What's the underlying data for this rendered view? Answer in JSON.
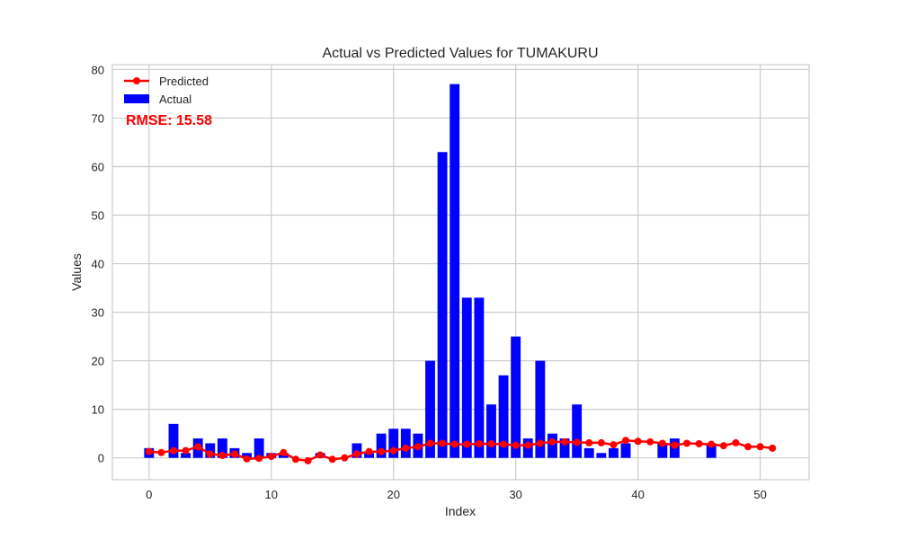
{
  "chart_data": {
    "type": "bar",
    "title": "Actual vs Predicted Values for TUMAKURU",
    "xlabel": "Index",
    "ylabel": "Values",
    "xlim": [
      -3,
      54
    ],
    "ylim": [
      -4.5,
      81
    ],
    "xticks": [
      0,
      10,
      20,
      30,
      40,
      50
    ],
    "yticks": [
      0,
      10,
      20,
      30,
      40,
      50,
      60,
      70,
      80
    ],
    "grid": true,
    "legend_position": "top-left",
    "x": [
      0,
      1,
      2,
      3,
      4,
      5,
      6,
      7,
      8,
      9,
      10,
      11,
      12,
      13,
      14,
      15,
      16,
      17,
      18,
      19,
      20,
      21,
      22,
      23,
      24,
      25,
      26,
      27,
      28,
      29,
      30,
      31,
      32,
      33,
      34,
      35,
      36,
      37,
      38,
      39,
      40,
      41,
      42,
      43,
      44,
      45,
      46,
      47,
      48,
      49,
      50,
      51
    ],
    "series": [
      {
        "name": "Actual",
        "kind": "bar",
        "color": "#0000ff",
        "values": [
          2,
          0,
          7,
          1,
          4,
          3,
          4,
          2,
          1,
          4,
          1,
          1,
          0,
          0,
          1,
          0,
          0,
          3,
          1,
          5,
          6,
          6,
          5,
          20,
          63,
          77,
          33,
          33,
          11,
          17,
          25,
          4,
          20,
          5,
          4,
          11,
          2,
          1,
          2,
          3,
          0,
          0,
          3,
          4,
          0,
          0,
          3,
          0,
          0,
          0,
          0,
          0
        ]
      },
      {
        "name": "Predicted",
        "kind": "line",
        "color": "#ff0000",
        "values": [
          1.3,
          1.1,
          1.5,
          1.5,
          2.3,
          0.8,
          0.5,
          0.8,
          -0.2,
          -0.1,
          0.3,
          1.1,
          -0.3,
          -0.6,
          0.6,
          -0.3,
          0.0,
          0.8,
          1.3,
          1.3,
          1.5,
          2.0,
          2.3,
          3.0,
          3.0,
          2.8,
          2.8,
          2.9,
          2.9,
          2.8,
          2.6,
          2.6,
          3.0,
          3.3,
          3.3,
          3.2,
          3.1,
          3.1,
          2.7,
          3.6,
          3.4,
          3.3,
          3.0,
          2.6,
          3.0,
          2.9,
          2.8,
          2.5,
          3.1,
          2.3,
          2.3,
          2.0
        ]
      }
    ],
    "annotation": {
      "text": "RMSE: 15.58",
      "color": "#ff0000"
    }
  }
}
